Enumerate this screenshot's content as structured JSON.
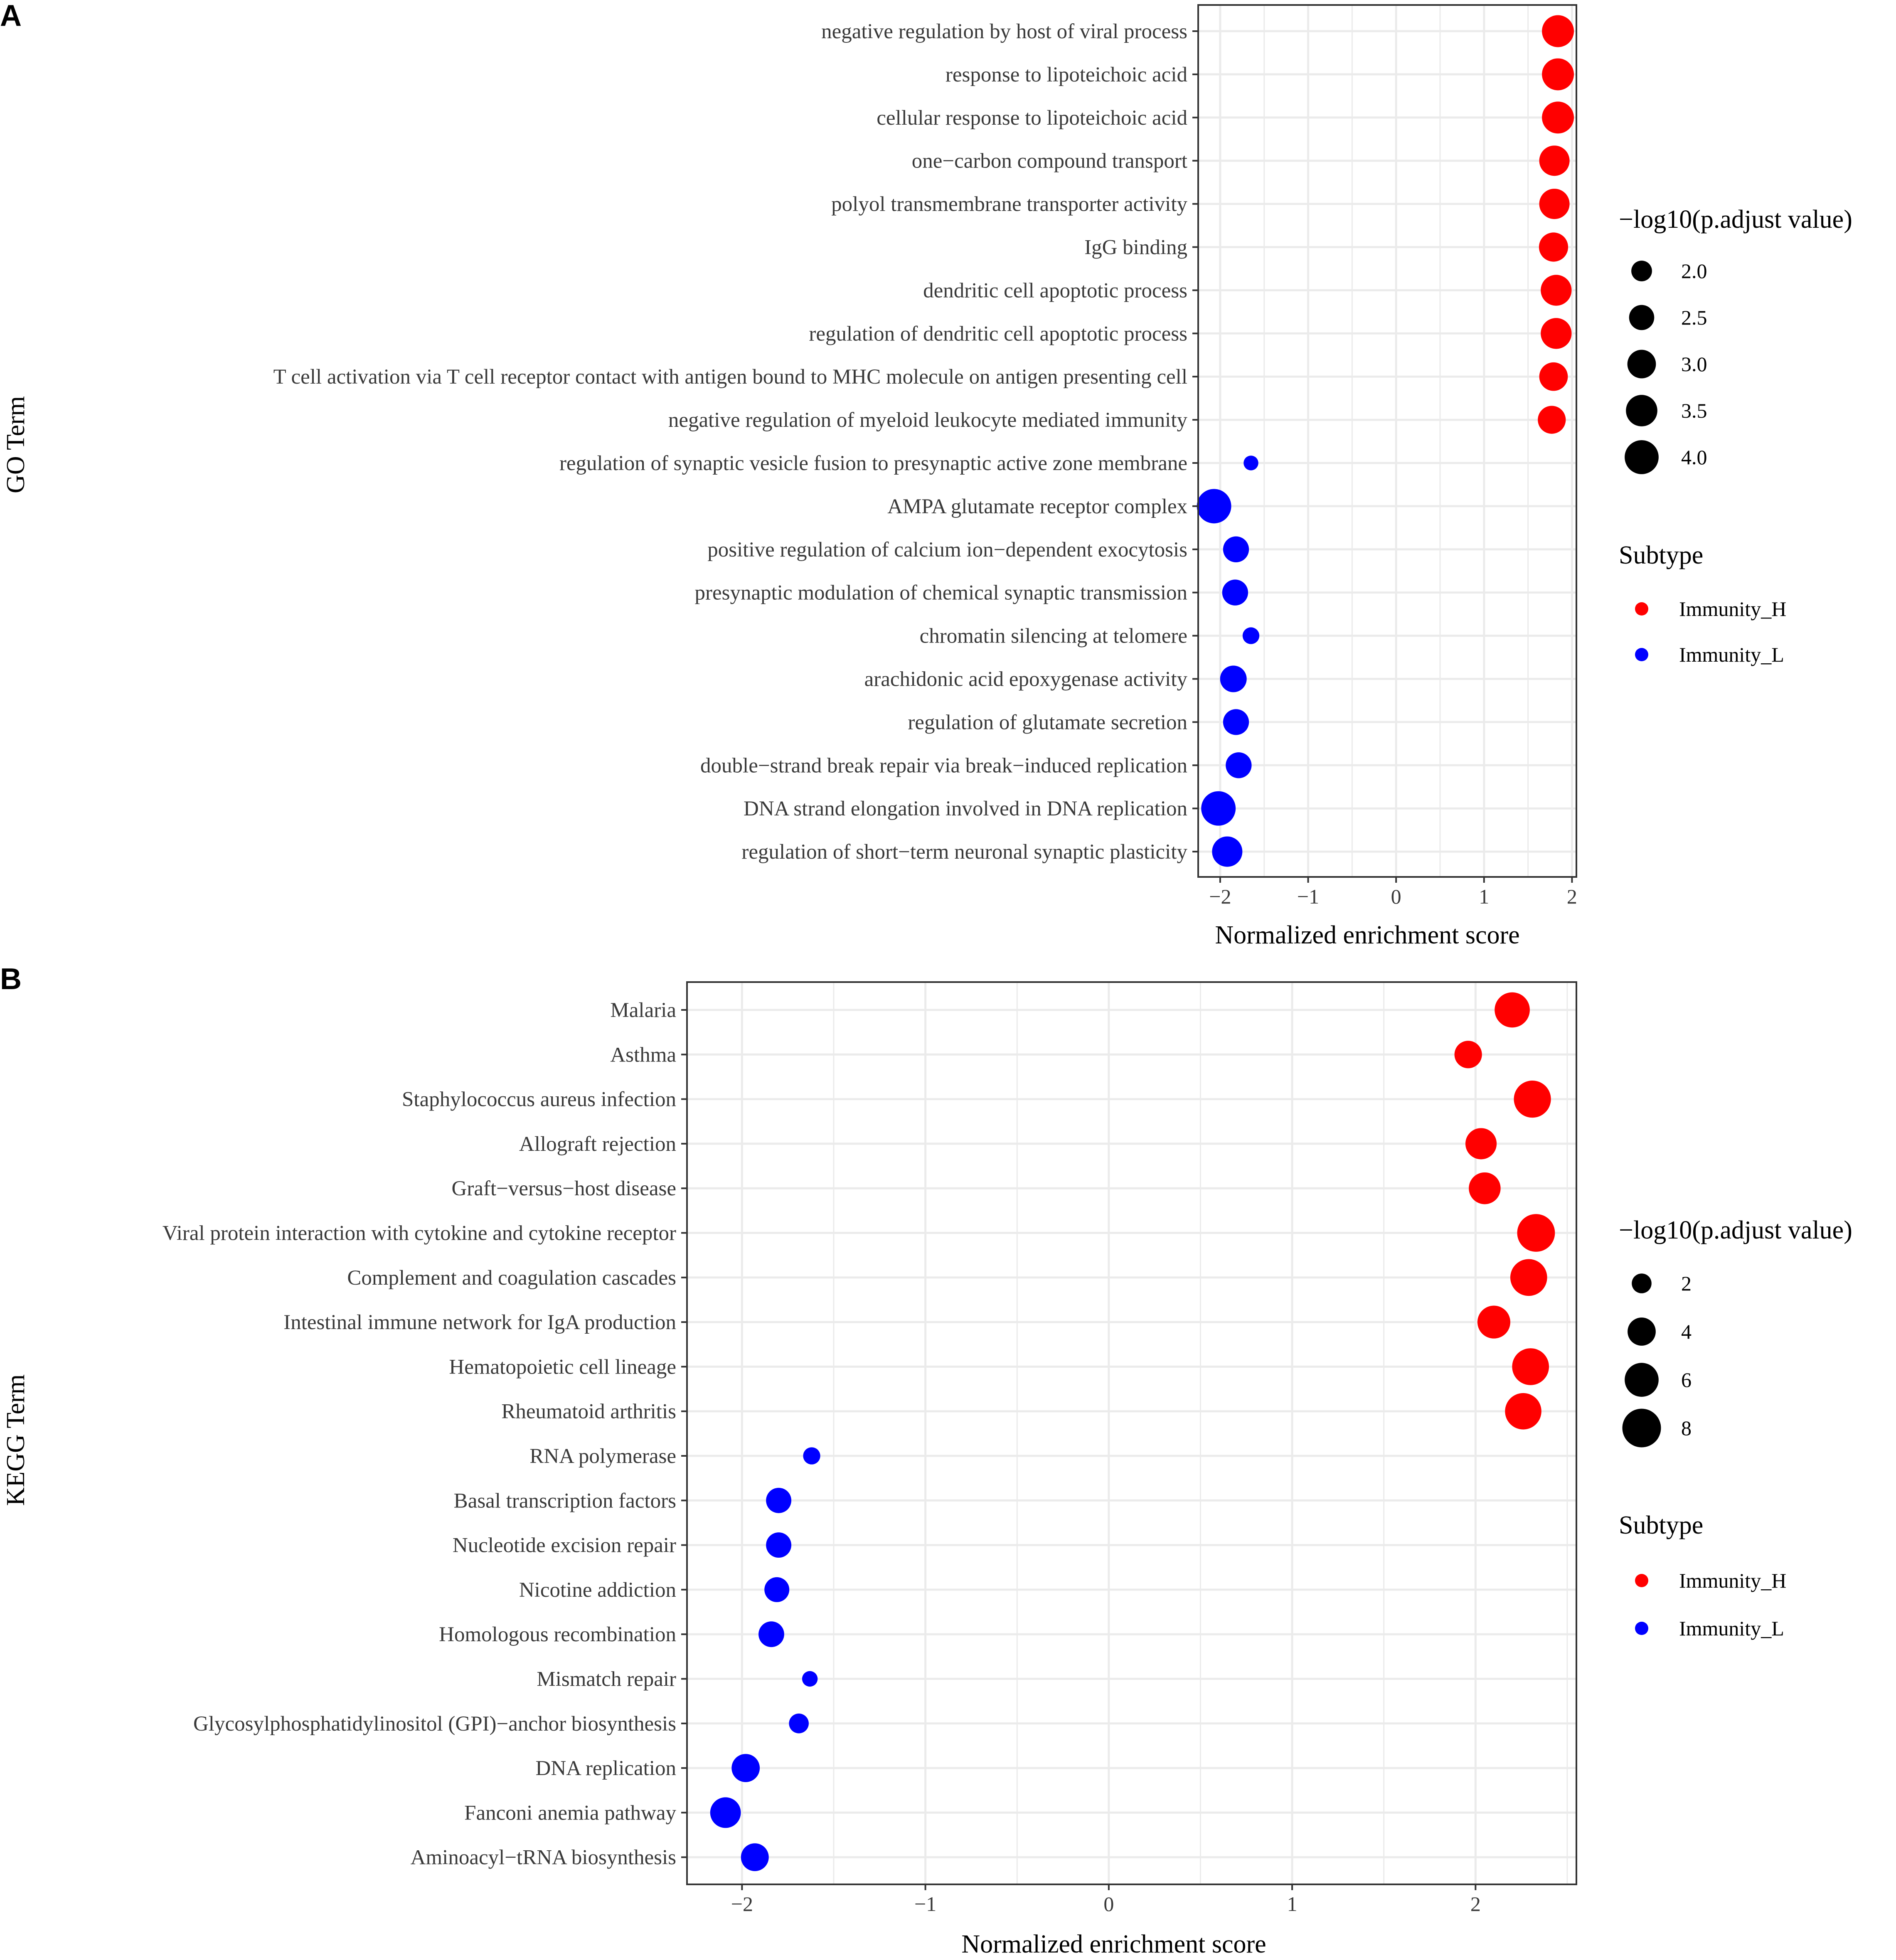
{
  "colors": {
    "Immunity_H": "#ff0000",
    "Immunity_L": "#0000ff",
    "legend_key": "#000000",
    "grid": "#ebebeb",
    "axis": "#333333"
  },
  "chart_data": [
    {
      "panel_letter": "A",
      "type": "scatter",
      "ylabel": "GO Term",
      "xlabel": "Normalized enrichment score",
      "xlim": [
        -2.25,
        2.05
      ],
      "xticks": [
        -2,
        -1,
        0,
        1,
        2
      ],
      "xtick_labels": [
        "−2",
        "−1",
        "0",
        "1",
        "2"
      ],
      "size_legend_title": "−log10(p.adjust value)",
      "size_legend": [
        {
          "label": "2.0",
          "value": 2.0
        },
        {
          "label": "2.5",
          "value": 2.5
        },
        {
          "label": "3.0",
          "value": 3.0
        },
        {
          "label": "3.5",
          "value": 3.5
        },
        {
          "label": "4.0",
          "value": 4.0
        }
      ],
      "size_domain": [
        1.5,
        4.2
      ],
      "color_legend_title": "Subtype",
      "color_legend": [
        "Immunity_H",
        "Immunity_L"
      ],
      "terms": [
        {
          "term": "negative regulation by host of viral process",
          "nes": 1.84,
          "logp": 3.6,
          "subtype": "Immunity_H"
        },
        {
          "term": "response to lipoteichoic acid",
          "nes": 1.84,
          "logp": 3.6,
          "subtype": "Immunity_H"
        },
        {
          "term": "cellular response to lipoteichoic acid",
          "nes": 1.84,
          "logp": 3.6,
          "subtype": "Immunity_H"
        },
        {
          "term": "one−carbon compound transport",
          "nes": 1.8,
          "logp": 3.3,
          "subtype": "Immunity_H"
        },
        {
          "term": "polyol transmembrane transporter activity",
          "nes": 1.8,
          "logp": 3.3,
          "subtype": "Immunity_H"
        },
        {
          "term": "IgG binding",
          "nes": 1.79,
          "logp": 3.1,
          "subtype": "Immunity_H"
        },
        {
          "term": "dendritic cell apoptotic process",
          "nes": 1.82,
          "logp": 3.4,
          "subtype": "Immunity_H"
        },
        {
          "term": "regulation of dendritic cell apoptotic process",
          "nes": 1.82,
          "logp": 3.4,
          "subtype": "Immunity_H"
        },
        {
          "term": "T cell activation via T cell receptor contact with antigen bound to MHC molecule on antigen presenting cell",
          "nes": 1.79,
          "logp": 3.0,
          "subtype": "Immunity_H"
        },
        {
          "term": "negative regulation of myeloid leukocyte mediated immunity",
          "nes": 1.77,
          "logp": 2.9,
          "subtype": "Immunity_H"
        },
        {
          "term": "regulation of synaptic vesicle fusion to presynaptic active zone membrane",
          "nes": -1.65,
          "logp": 1.6,
          "subtype": "Immunity_L"
        },
        {
          "term": "AMPA glutamate receptor complex",
          "nes": -2.07,
          "logp": 4.1,
          "subtype": "Immunity_L"
        },
        {
          "term": "positive regulation of calcium ion−dependent exocytosis",
          "nes": -1.82,
          "logp": 2.6,
          "subtype": "Immunity_L"
        },
        {
          "term": "presynaptic modulation of chemical synaptic transmission",
          "nes": -1.83,
          "logp": 2.6,
          "subtype": "Immunity_L"
        },
        {
          "term": "chromatin silencing at telomere",
          "nes": -1.65,
          "logp": 1.7,
          "subtype": "Immunity_L"
        },
        {
          "term": "arachidonic acid epoxygenase activity",
          "nes": -1.85,
          "logp": 2.7,
          "subtype": "Immunity_L"
        },
        {
          "term": "regulation of glutamate secretion",
          "nes": -1.82,
          "logp": 2.6,
          "subtype": "Immunity_L"
        },
        {
          "term": "double−strand break repair via break−induced replication",
          "nes": -1.79,
          "logp": 2.6,
          "subtype": "Immunity_L"
        },
        {
          "term": "DNA strand elongation involved in DNA replication",
          "nes": -2.02,
          "logp": 4.1,
          "subtype": "Immunity_L"
        },
        {
          "term": "regulation of short−term neuronal synaptic plasticity",
          "nes": -1.92,
          "logp": 3.3,
          "subtype": "Immunity_L"
        }
      ]
    },
    {
      "panel_letter": "B",
      "type": "scatter",
      "ylabel": "KEGG Term",
      "xlabel": "Normalized enrichment score",
      "xlim": [
        -2.3,
        2.55
      ],
      "xticks": [
        -2,
        -1,
        0,
        1,
        2
      ],
      "xtick_labels": [
        "−2",
        "−1",
        "0",
        "1",
        "2"
      ],
      "size_legend_title": "−log10(p.adjust value)",
      "size_legend": [
        {
          "label": "2",
          "value": 2
        },
        {
          "label": "4",
          "value": 4
        },
        {
          "label": "6",
          "value": 6
        },
        {
          "label": "8",
          "value": 8
        }
      ],
      "size_domain": [
        1.0,
        9.0
      ],
      "color_legend_title": "Subtype",
      "color_legend": [
        "Immunity_H",
        "Immunity_L"
      ],
      "terms": [
        {
          "term": "Malaria",
          "nes": 2.2,
          "logp": 6.5,
          "subtype": "Immunity_H"
        },
        {
          "term": "Asthma",
          "nes": 1.96,
          "logp": 3.8,
          "subtype": "Immunity_H"
        },
        {
          "term": "Staphylococcus aureus infection",
          "nes": 2.31,
          "logp": 7.3,
          "subtype": "Immunity_H"
        },
        {
          "term": "Allograft rejection",
          "nes": 2.03,
          "logp": 5.0,
          "subtype": "Immunity_H"
        },
        {
          "term": "Graft−versus−host disease",
          "nes": 2.05,
          "logp": 5.2,
          "subtype": "Immunity_H"
        },
        {
          "term": "Viral protein interaction with cytokine and cytokine receptor",
          "nes": 2.33,
          "logp": 7.6,
          "subtype": "Immunity_H"
        },
        {
          "term": "Complement and coagulation cascades",
          "nes": 2.29,
          "logp": 7.2,
          "subtype": "Immunity_H"
        },
        {
          "term": "Intestinal immune network for IgA production",
          "nes": 2.1,
          "logp": 5.6,
          "subtype": "Immunity_H"
        },
        {
          "term": "Hematopoietic cell lineage",
          "nes": 2.3,
          "logp": 7.2,
          "subtype": "Immunity_H"
        },
        {
          "term": "Rheumatoid arthritis",
          "nes": 2.26,
          "logp": 7.0,
          "subtype": "Immunity_H"
        },
        {
          "term": "RNA polymerase",
          "nes": -1.62,
          "logp": 1.6,
          "subtype": "Immunity_L"
        },
        {
          "term": "Basal transcription factors",
          "nes": -1.8,
          "logp": 3.2,
          "subtype": "Immunity_L"
        },
        {
          "term": "Nucleotide excision repair",
          "nes": -1.8,
          "logp": 3.2,
          "subtype": "Immunity_L"
        },
        {
          "term": "Nicotine addiction",
          "nes": -1.81,
          "logp": 3.1,
          "subtype": "Immunity_L"
        },
        {
          "term": "Homologous recombination",
          "nes": -1.84,
          "logp": 3.3,
          "subtype": "Immunity_L"
        },
        {
          "term": "Mismatch repair",
          "nes": -1.63,
          "logp": 1.4,
          "subtype": "Immunity_L"
        },
        {
          "term": "Glycosylphosphatidylinositol (GPI)−anchor biosynthesis",
          "nes": -1.69,
          "logp": 2.0,
          "subtype": "Immunity_L"
        },
        {
          "term": "DNA replication",
          "nes": -1.98,
          "logp": 4.0,
          "subtype": "Immunity_L"
        },
        {
          "term": "Fanconi anemia pathway",
          "nes": -2.09,
          "logp": 4.8,
          "subtype": "Immunity_L"
        },
        {
          "term": "Aminoacyl−tRNA biosynthesis",
          "nes": -1.93,
          "logp": 3.9,
          "subtype": "Immunity_L"
        }
      ]
    }
  ]
}
